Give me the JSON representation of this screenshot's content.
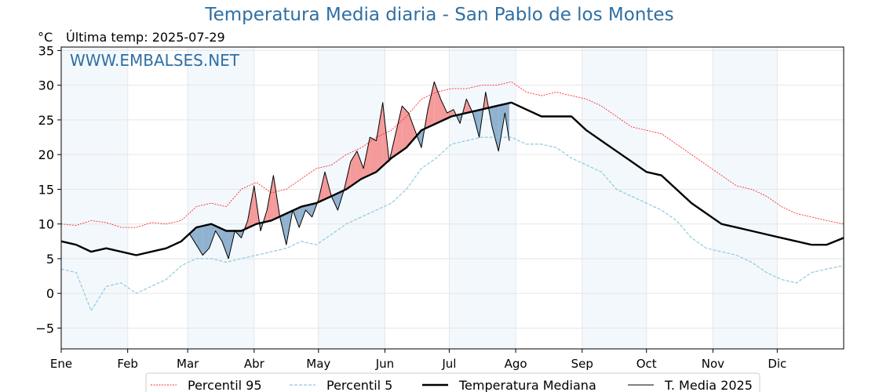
{
  "header": {
    "title": "Temperatura Media diaria - San Pablo de los Montes",
    "unit": "°C",
    "last_temp": "Última temp: 2025-07-29"
  },
  "watermark": "WWW.EMBALSES.NET",
  "colors": {
    "p95": "#ff2a2a",
    "p5": "#8ec9dd",
    "median": "#000000",
    "year": "#000000",
    "above_fill": "#f58a8a",
    "below_fill": "#7ea6c8",
    "band": "#f3f8fd",
    "grid": "#e6e6e6"
  },
  "legend": [
    {
      "key": "p95",
      "label": "Percentil 95"
    },
    {
      "key": "p5",
      "label": "Percentil 5"
    },
    {
      "key": "median",
      "label": "Temperatura Mediana"
    },
    {
      "key": "year",
      "label": "T. Media 2025"
    }
  ],
  "chart_data": {
    "type": "line",
    "xlabel": "",
    "ylabel": "°C",
    "ylim": [
      -8,
      35.5
    ],
    "xlim": [
      1,
      366
    ],
    "yticks": [
      -5,
      0,
      5,
      10,
      15,
      20,
      25,
      30,
      35
    ],
    "months": [
      {
        "label": "Ene",
        "day": 1
      },
      {
        "label": "Feb",
        "day": 32
      },
      {
        "label": "Mar",
        "day": 60
      },
      {
        "label": "Abr",
        "day": 91
      },
      {
        "label": "May",
        "day": 121
      },
      {
        "label": "Jun",
        "day": 152
      },
      {
        "label": "Jul",
        "day": 182
      },
      {
        "label": "Ago",
        "day": 213
      },
      {
        "label": "Sep",
        "day": 244
      },
      {
        "label": "Oct",
        "day": 274
      },
      {
        "label": "Nov",
        "day": 305
      },
      {
        "label": "Dic",
        "day": 335
      }
    ],
    "shaded_months": [
      {
        "start": 1,
        "end": 32
      },
      {
        "start": 60,
        "end": 91
      },
      {
        "start": 121,
        "end": 152
      },
      {
        "start": 182,
        "end": 213
      },
      {
        "start": 244,
        "end": 274
      },
      {
        "start": 305,
        "end": 335
      }
    ],
    "grid": true,
    "legend_position": "bottom",
    "series": [
      {
        "key": "p95",
        "name": "Percentil 95",
        "style": "dotted-thin",
        "x": [
          1,
          8,
          15,
          22,
          29,
          36,
          43,
          50,
          57,
          64,
          71,
          78,
          85,
          92,
          99,
          106,
          113,
          120,
          127,
          134,
          141,
          148,
          155,
          162,
          169,
          176,
          183,
          190,
          197,
          204,
          211,
          218,
          225,
          232,
          239,
          246,
          253,
          260,
          267,
          274,
          281,
          288,
          295,
          302,
          309,
          316,
          323,
          330,
          337,
          344,
          351,
          358,
          366
        ],
        "y": [
          10,
          9.8,
          10.5,
          10.2,
          9.5,
          9.5,
          10.2,
          10,
          10.5,
          12.5,
          13,
          12.5,
          15,
          16,
          14.5,
          15,
          16.5,
          18,
          18.5,
          20,
          21,
          22.5,
          23.5,
          25.5,
          28,
          29,
          29.5,
          29.5,
          30,
          30,
          30.5,
          29,
          28.5,
          29,
          28.5,
          28,
          27,
          25.5,
          24,
          23.5,
          23,
          21.5,
          20,
          18.5,
          17,
          15.5,
          15,
          14,
          12.5,
          11.5,
          11,
          10.5,
          10
        ]
      },
      {
        "key": "p5",
        "name": "Percentil 5",
        "style": "dashed-thin",
        "x": [
          1,
          8,
          15,
          22,
          29,
          36,
          43,
          50,
          57,
          64,
          71,
          78,
          85,
          92,
          99,
          106,
          113,
          120,
          127,
          134,
          141,
          148,
          155,
          162,
          169,
          176,
          183,
          190,
          197,
          204,
          211,
          218,
          225,
          232,
          239,
          246,
          253,
          260,
          267,
          274,
          281,
          288,
          295,
          302,
          309,
          316,
          323,
          330,
          337,
          344,
          351,
          358,
          366
        ],
        "y": [
          3.5,
          3,
          -2.5,
          1,
          1.5,
          0,
          1,
          2,
          4,
          5,
          5,
          4.5,
          5,
          5.5,
          6,
          6.5,
          7.5,
          7,
          8.5,
          10,
          11,
          12,
          13,
          15,
          18,
          19.5,
          21.5,
          22,
          22.5,
          22.5,
          22.5,
          21.5,
          21.5,
          21,
          19.5,
          18.5,
          17.5,
          15,
          14,
          13,
          12,
          10.5,
          8,
          6.5,
          6,
          5.5,
          4.5,
          3,
          2,
          1.5,
          3,
          3.5,
          4
        ]
      },
      {
        "key": "median",
        "name": "Temperatura Mediana",
        "style": "solid-thick",
        "x": [
          1,
          8,
          15,
          22,
          29,
          36,
          43,
          50,
          57,
          64,
          71,
          78,
          85,
          92,
          99,
          106,
          113,
          120,
          127,
          134,
          141,
          148,
          155,
          162,
          169,
          176,
          183,
          190,
          197,
          204,
          211,
          218,
          225,
          232,
          239,
          246,
          253,
          260,
          267,
          274,
          281,
          288,
          295,
          302,
          309,
          316,
          323,
          330,
          337,
          344,
          351,
          358,
          366
        ],
        "y": [
          7.5,
          7,
          6,
          6.5,
          6,
          5.5,
          6,
          6.5,
          7.5,
          9.5,
          10,
          9,
          9,
          10,
          10.5,
          11.5,
          12.5,
          13,
          14,
          15,
          16.5,
          17.5,
          19.5,
          21,
          23.5,
          24.5,
          25.5,
          26,
          26.5,
          27,
          27.5,
          26.5,
          25.5,
          25.5,
          25.5,
          23.5,
          22,
          20.5,
          19,
          17.5,
          17,
          15,
          13,
          11.5,
          10,
          9.5,
          9,
          8.5,
          8,
          7.5,
          7,
          7,
          8
        ]
      },
      {
        "key": "year",
        "name": "T. Media 2025",
        "style": "solid-thin",
        "x": [
          61,
          64,
          67,
          70,
          73,
          76,
          79,
          82,
          85,
          88,
          91,
          94,
          97,
          100,
          103,
          106,
          109,
          112,
          115,
          118,
          121,
          124,
          127,
          130,
          133,
          136,
          139,
          142,
          145,
          148,
          151,
          154,
          157,
          160,
          163,
          166,
          169,
          172,
          175,
          178,
          181,
          184,
          187,
          190,
          193,
          196,
          199,
          202,
          205,
          208,
          210
        ],
        "y": [
          8.5,
          7,
          5.5,
          6.5,
          9,
          7.5,
          5,
          9,
          8,
          10.5,
          15.5,
          9,
          12,
          17,
          11,
          7,
          12,
          9.5,
          12,
          11,
          13.5,
          17.5,
          14,
          12,
          15,
          19,
          20.5,
          18,
          22.5,
          22,
          27.5,
          19,
          23,
          27,
          26,
          23.5,
          21,
          26.5,
          30.5,
          28,
          26,
          26.5,
          24.5,
          28,
          26,
          22.5,
          29,
          24,
          20.5,
          26,
          22
        ]
      }
    ]
  }
}
